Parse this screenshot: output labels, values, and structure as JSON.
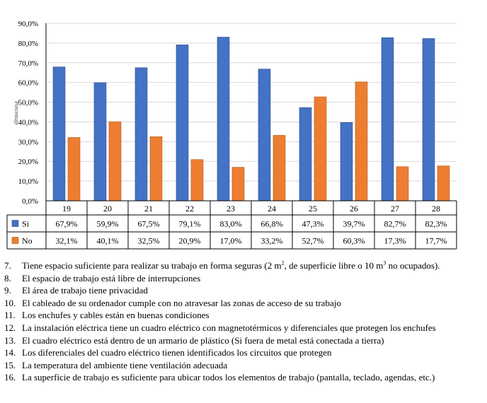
{
  "chart_data": {
    "type": "bar",
    "categories": [
      "19",
      "20",
      "21",
      "22",
      "23",
      "24",
      "25",
      "26",
      "27",
      "28"
    ],
    "series": [
      {
        "name": "Si",
        "color": "#4472C4",
        "values": [
          67.9,
          59.9,
          67.5,
          79.1,
          83.0,
          66.8,
          47.3,
          39.7,
          82.7,
          82.3
        ],
        "labels": [
          "67,9%",
          "59,9%",
          "67,5%",
          "79,1%",
          "83,0%",
          "66,8%",
          "47,3%",
          "39,7%",
          "82,7%",
          "82,3%"
        ]
      },
      {
        "name": "No",
        "color": "#ED7D31",
        "values": [
          32.1,
          40.1,
          32.5,
          20.9,
          17.0,
          33.2,
          52.7,
          60.3,
          17.3,
          17.7
        ],
        "labels": [
          "32,1%",
          "40,1%",
          "32,5%",
          "20,9%",
          "17,0%",
          "33,2%",
          "52,7%",
          "60,3%",
          "17,3%",
          "17,7%"
        ]
      }
    ],
    "ylim": [
      0,
      90
    ],
    "yticks": [
      "0,0%",
      "10,0%",
      "20,0%",
      "30,0%",
      "40,0%",
      "50,0%",
      "60,0%",
      "70,0%",
      "80,0%",
      "90,0%"
    ],
    "ylabel": "Porcentaje",
    "grid": true,
    "data_table": true
  },
  "notes": [
    {
      "num": "7.",
      "html": "Tiene espacio suficiente para realizar su trabajo en forma seguras (2 m<sup>2</sup>, de superficie libre o 10 m<sup>3</sup> no ocupados)."
    },
    {
      "num": "8.",
      "html": "El espacio de trabajo está libre de interrupciones"
    },
    {
      "num": "9.",
      "html": "El área de trabajo tiene privacidad"
    },
    {
      "num": "10.",
      "html": "El cableado de su ordenador cumple con no atravesar las zonas de acceso de su trabajo"
    },
    {
      "num": "11.",
      "html": "Los enchufes y cables están en buenas condiciones"
    },
    {
      "num": "12.",
      "html": "La instalación eléctrica tiene un cuadro eléctrico con magnetotérmicos y diferenciales que protegen los enchufes"
    },
    {
      "num": "13.",
      "html": "El cuadro eléctrico está dentro de un armario de plástico (Si fuera de metal está conectada a tierra)"
    },
    {
      "num": "14.",
      "html": "Los diferenciales del cuadro eléctrico tienen identificados los circuitos que protegen"
    },
    {
      "num": "15.",
      "html": "La temperatura del ambiente tiene ventilación adecuada"
    },
    {
      "num": "16.",
      "html": "La superficie de trabajo es suficiente para ubicar todos los elementos de trabajo (pantalla, teclado, agendas, etc.)"
    }
  ]
}
